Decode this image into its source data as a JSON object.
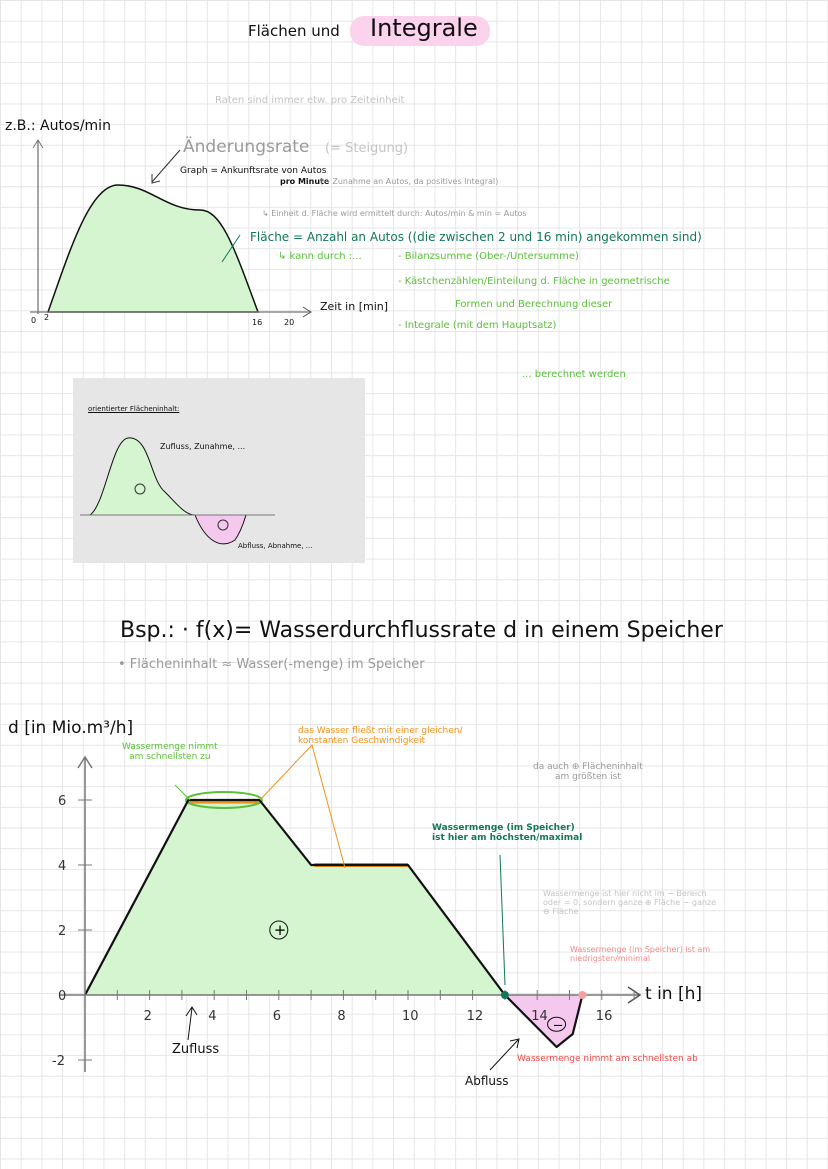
{
  "title": {
    "part1": "Flächen und",
    "part2": "Integrale"
  },
  "note_rates": "Raten sind immer etw. pro Zeiteinheit",
  "graph1": {
    "ylabel": "z.B.: Autos/min",
    "xlabel": "Zeit in [min]",
    "ticks": [
      "0",
      "2",
      "16",
      "20"
    ],
    "rate_label": "Änderungsrate",
    "rate_hint": "(= Steigung)",
    "graph_line1": "Graph = Ankunftsrate von Autos",
    "graph_line2": "pro Minute",
    "graph_line2b": "(→ Zunahme an Autos, da positives Integral)",
    "unit_note": "↳ Einheit d. Fläche wird ermittelt durch:  Autos/min & min = Autos",
    "area_text": "Fläche = Anzahl an Autos ((die zwischen 2 und 16 min) angekommen sind)",
    "can_by": "↳ kann durch :...",
    "methods": [
      "- Bilanzsumme (Ober-/Untersumme)",
      "- Kästchenzählen/Einteilung d. Fläche in geometrische",
      "Formen und Berechnung dieser",
      "- Integrale (mit dem Hauptsatz)"
    ],
    "computed": "... berechnet werden"
  },
  "box": {
    "title": "orientierter Flächeninhalt:",
    "pos_label": "Zufluss, Zunahme, ...",
    "neg_label": "Abfluss, Abnahme, ...",
    "plus": "+",
    "minus": "−"
  },
  "example": {
    "heading": "Bsp.: · f(x)= Wasserdurchflussrate d in einem Speicher",
    "sub": "• Flächeninhalt ≈ Wasser(-menge) im Speicher"
  },
  "chart_data": {
    "type": "area",
    "ylabel": "d [in Mio.m³/h]",
    "xlabel": "t in [h]",
    "x_ticks": [
      2,
      4,
      6,
      8,
      10,
      12,
      14,
      16
    ],
    "y_ticks": [
      -2,
      0,
      2,
      4,
      6
    ],
    "xlim": [
      0,
      18
    ],
    "ylim": [
      -2.3,
      7
    ],
    "points": [
      [
        0,
        0
      ],
      [
        3.2,
        6
      ],
      [
        5.4,
        6
      ],
      [
        7,
        4
      ],
      [
        10,
        4
      ],
      [
        13,
        0
      ],
      [
        14,
        -1
      ],
      [
        14.6,
        -1.6
      ],
      [
        15.1,
        -1.2
      ],
      [
        15.4,
        0
      ]
    ],
    "colors": {
      "positive": "#d4f5cf",
      "negative": "#f5c9ee",
      "line": "#111111"
    }
  },
  "annotations": {
    "fastest_in": "Wassermenge nimmt\nam schnellsten zu",
    "constant": "das Wasser fließt mit einer gleichen/\nkonstanten Geschwindigkeit",
    "also_area": "da auch ⊕ Flächeninhalt\nam größten ist",
    "max": "Wassermenge (im Speicher)\nist hier am höchsten/maximal",
    "not_neg": "Wassermenge ist hier nicht im − Bereich\noder = 0, sondern ganze ⊕ Fläche − ganze\n⊖ Fläche",
    "min": "Wassermenge (im Speicher) ist am\nniedrigsten/minimal",
    "fastest_out": "Wassermenge nimmt am schnellsten ab",
    "inflow": "Zufluss",
    "outflow": "Abfluss",
    "plus": "+",
    "minus": "−"
  }
}
